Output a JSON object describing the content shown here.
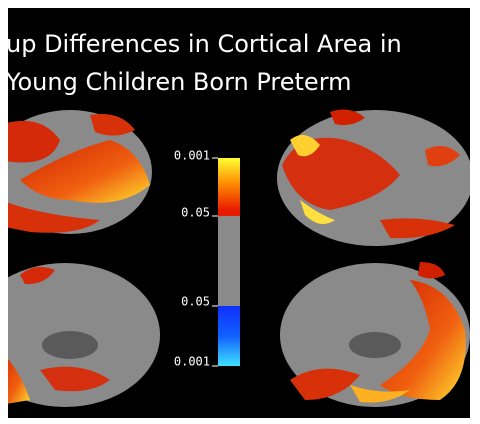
{
  "title": {
    "line1": "up Differences in Cortical Area in",
    "line2": "Young Children Born Preterm"
  },
  "colorbar": {
    "labels": [
      "0.001",
      "0.05",
      "0.05",
      "0.001"
    ]
  }
}
